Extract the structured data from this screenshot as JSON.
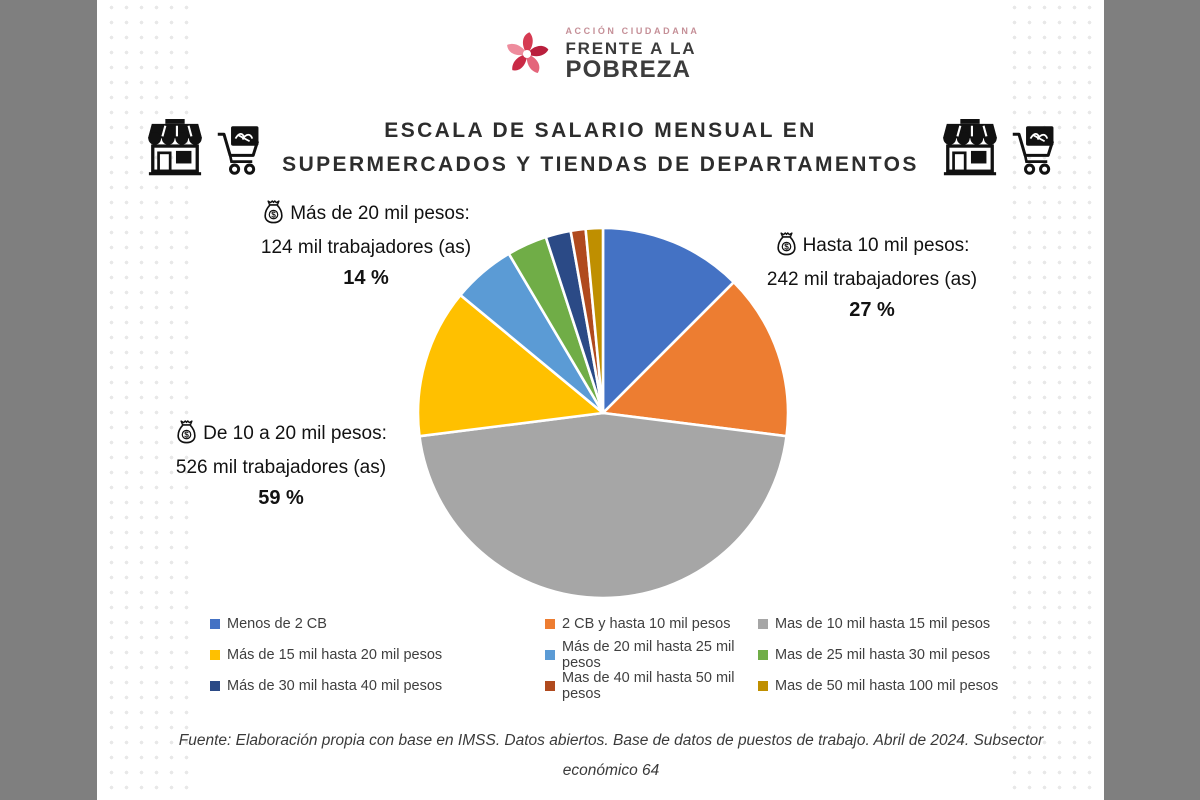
{
  "logo": {
    "tagline": "ACCIÓN CIUDADANA",
    "line1": "FRENTE A LA",
    "line2": "POBREZA",
    "mark_icon": "pinwheel-icon",
    "colors": {
      "tagline": "#C58F97",
      "text": "#3C3C3C",
      "mark": [
        "#D63A52",
        "#B91F3D",
        "#E4657B",
        "#C92945",
        "#EE8C9D"
      ]
    }
  },
  "title": {
    "line1": "ESCALA DE SALARIO MENSUAL EN",
    "line2": "SUPERMERCADOS Y TIENDAS DE DEPARTAMENTOS"
  },
  "decor_icons": [
    "storefront-icon",
    "shopping-cart-icon"
  ],
  "chart_data": {
    "type": "pie",
    "title": "ESCALA DE SALARIO MENSUAL EN SUPERMERCADOS Y TIENDAS DE DEPARTAMENTOS",
    "start_angle_deg": 0,
    "direction": "clockwise",
    "legend_position": "bottom",
    "units": "percent of mil trabajadores (as)",
    "slices": [
      {
        "label": "Menos de 2 CB",
        "value": 12.5,
        "color": "#4472C4"
      },
      {
        "label": "2 CB y hasta 10 mil pesos",
        "value": 14.5,
        "color": "#ED7D31"
      },
      {
        "label": "Mas de 10 mil hasta 15 mil pesos",
        "value": 46.0,
        "color": "#A6A6A6"
      },
      {
        "label": "Más de 15 mil hasta 20 mil pesos",
        "value": 13.0,
        "color": "#FFC000"
      },
      {
        "label": "Más de 20 mil hasta 25 mil pesos",
        "value": 5.5,
        "color": "#5B9BD5"
      },
      {
        "label": "Mas de 25 mil hasta 30 mil pesos",
        "value": 3.5,
        "color": "#70AD47"
      },
      {
        "label": "Más de 30 mil hasta 40 mil pesos",
        "value": 2.2,
        "color": "#2B4A86"
      },
      {
        "label": "Mas de 40 mil hasta 50 mil pesos",
        "value": 1.3,
        "color": "#B04A1E"
      },
      {
        "label": "Mas de 50 mil hasta 100 mil pesos",
        "value": 1.5,
        "color": "#BF8F00"
      }
    ],
    "annotations": [
      {
        "group": "Hasta 10 mil pesos:",
        "workers": "242 mil trabajadores (as)",
        "percent": "27 %",
        "position": "right",
        "icon": "money-bag-icon"
      },
      {
        "group": "De 10 a 20 mil pesos:",
        "workers": "526 mil trabajadores (as)",
        "percent": "59 %",
        "position": "left-middle",
        "icon": "money-bag-icon"
      },
      {
        "group": "Más de 20 mil pesos:",
        "workers": "124 mil trabajadores (as)",
        "percent": "14 %",
        "position": "left-top",
        "icon": "money-bag-icon"
      }
    ]
  },
  "footer": {
    "text": "Fuente: Elaboración propia con base en IMSS. Datos abiertos. Base de datos de puestos de trabajo. Abril de 2024. Subsector económico 64"
  }
}
